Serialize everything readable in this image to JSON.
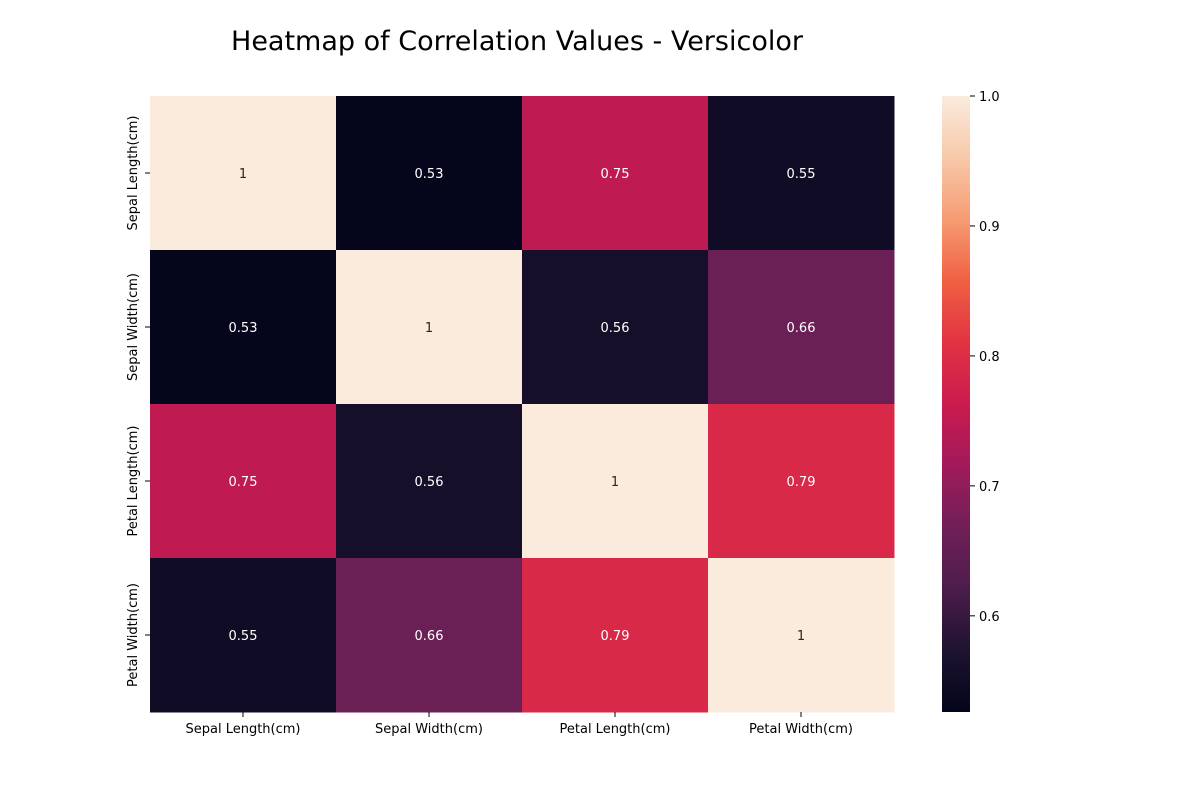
{
  "chart_data": {
    "type": "heatmap",
    "title": "Heatmap of Correlation Values - Versicolor",
    "xlabel": "",
    "ylabel": "",
    "x_categories": [
      "Sepal Length(cm)",
      "Sepal Width(cm)",
      "Petal Length(cm)",
      "Petal Width(cm)"
    ],
    "y_categories": [
      "Sepal Length(cm)",
      "Sepal Width(cm)",
      "Petal Length(cm)",
      "Petal Width(cm)"
    ],
    "values": [
      [
        1,
        0.53,
        0.75,
        0.55
      ],
      [
        0.53,
        1,
        0.56,
        0.66
      ],
      [
        0.75,
        0.56,
        1,
        0.79
      ],
      [
        0.55,
        0.66,
        0.79,
        1
      ]
    ],
    "cell_labels": [
      [
        "1",
        "0.53",
        "0.75",
        "0.55"
      ],
      [
        "0.53",
        "1",
        "0.56",
        "0.66"
      ],
      [
        "0.75",
        "0.56",
        "1",
        "0.79"
      ],
      [
        "0.55",
        "0.66",
        "0.79",
        "1"
      ]
    ],
    "colorbar": {
      "vmin": 0.526,
      "vmax": 1.0,
      "ticks": [
        0.6,
        0.7,
        0.8,
        0.9,
        1.0
      ],
      "tick_labels": [
        "0.6",
        "0.7",
        "0.8",
        "0.9",
        "1.0"
      ],
      "colormap": "rocket",
      "colormap_stops": [
        "#03051a",
        "#1e1330",
        "#4c1d4b",
        "#701f57",
        "#a11a5b",
        "#cb1b4f",
        "#e13342",
        "#f06043",
        "#f69c73",
        "#f7c9aa",
        "#faebdd"
      ]
    },
    "grid": false,
    "legend": "colorbar-right"
  }
}
